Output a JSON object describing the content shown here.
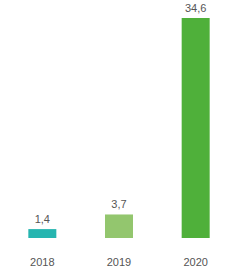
{
  "chart_data": {
    "type": "bar",
    "categories": [
      "2018",
      "2019",
      "2020"
    ],
    "values": [
      1.4,
      3.7,
      34.6
    ],
    "value_labels": [
      "1,4",
      "3,7",
      "34,6"
    ],
    "colors": [
      "#26b5b0",
      "#93c66e",
      "#4fb03a"
    ],
    "ylim": [
      0,
      34.6
    ],
    "data_labels": true,
    "tick_labels": "x"
  }
}
